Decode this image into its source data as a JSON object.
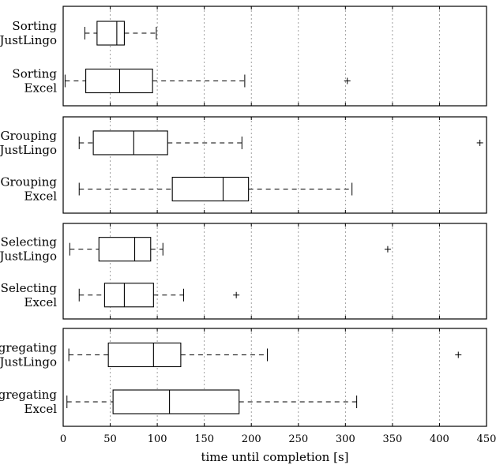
{
  "chart_data": {
    "type": "boxplot",
    "xlabel": "time until completion [s]",
    "xlim": [
      0,
      450
    ],
    "xticks": [
      0,
      50,
      100,
      150,
      200,
      250,
      300,
      350,
      400,
      450
    ],
    "grid": "vertical dotted",
    "panels": [
      {
        "name": "Sorting",
        "groups": [
          {
            "label": [
              "Sorting",
              "JustLingo"
            ],
            "whisker_low": 23,
            "q1": 36,
            "median": 57,
            "q3": 65,
            "whisker_high": 99,
            "outliers": []
          },
          {
            "label": [
              "Sorting",
              "Excel"
            ],
            "whisker_low": 2,
            "q1": 24,
            "median": 60,
            "q3": 95,
            "whisker_high": 193,
            "outliers": [
              302
            ]
          }
        ]
      },
      {
        "name": "Grouping",
        "groups": [
          {
            "label": [
              "Grouping",
              "JustLingo"
            ],
            "whisker_low": 17,
            "q1": 32,
            "median": 75,
            "q3": 111,
            "whisker_high": 190,
            "outliers": [
              443
            ]
          },
          {
            "label": [
              "Grouping",
              "Excel"
            ],
            "whisker_low": 17,
            "q1": 116,
            "median": 170,
            "q3": 197,
            "whisker_high": 307,
            "outliers": []
          }
        ]
      },
      {
        "name": "Selecting",
        "groups": [
          {
            "label": [
              "Selecting",
              "JustLingo"
            ],
            "whisker_low": 7,
            "q1": 38,
            "median": 76,
            "q3": 93,
            "whisker_high": 106,
            "outliers": [
              345
            ]
          },
          {
            "label": [
              "Selecting",
              "Excel"
            ],
            "whisker_low": 17,
            "q1": 44,
            "median": 65,
            "q3": 96,
            "whisker_high": 128,
            "outliers": [
              184
            ]
          }
        ]
      },
      {
        "name": "Aggregating",
        "groups": [
          {
            "label": [
              "Aggregating",
              "JustLingo"
            ],
            "whisker_low": 6,
            "q1": 48,
            "median": 96,
            "q3": 125,
            "whisker_high": 217,
            "outliers": [
              420
            ]
          },
          {
            "label": [
              "Aggregating",
              "Excel"
            ],
            "whisker_low": 4,
            "q1": 53,
            "median": 113,
            "q3": 187,
            "whisker_high": 312,
            "outliers": []
          }
        ]
      }
    ]
  }
}
